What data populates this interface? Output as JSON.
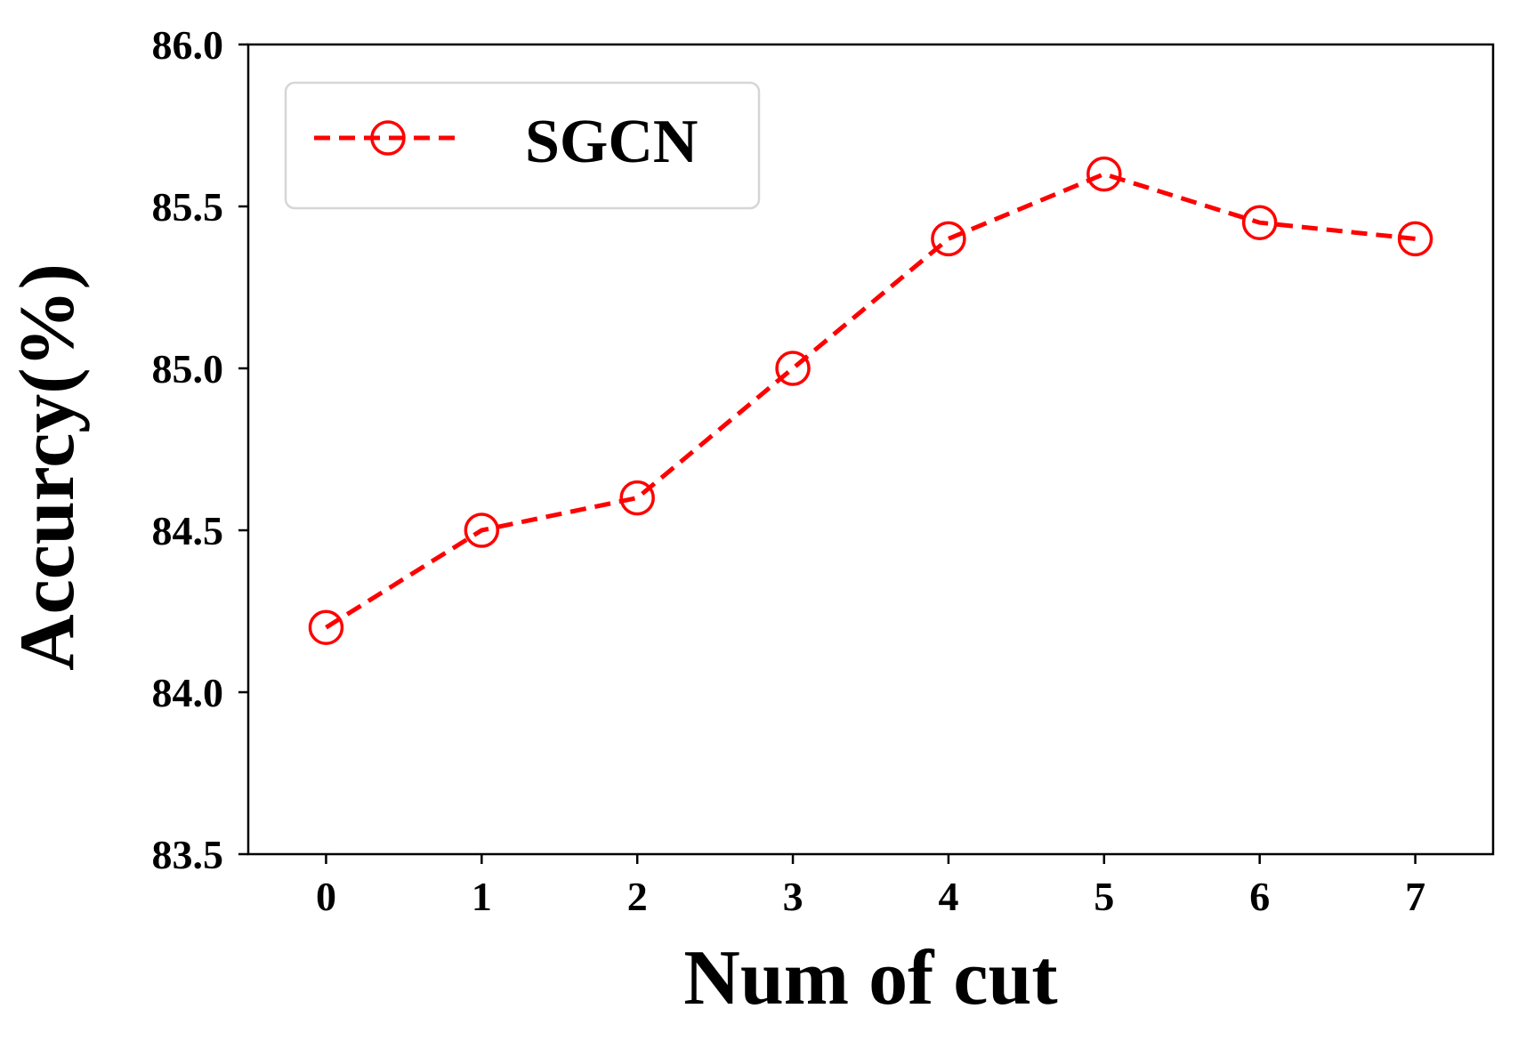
{
  "chart_data": {
    "type": "line",
    "title": "",
    "xlabel": "Num of cut",
    "ylabel": "Accurcy(%)",
    "x": [
      0,
      1,
      2,
      3,
      4,
      5,
      6,
      7
    ],
    "x_tick_labels": [
      "0",
      "1",
      "2",
      "3",
      "4",
      "5",
      "6",
      "7"
    ],
    "xlim": [
      -0.5,
      7.5
    ],
    "ylim": [
      83.5,
      86.0
    ],
    "y_ticks": [
      83.5,
      84.0,
      84.5,
      85.0,
      85.5,
      86.0
    ],
    "y_tick_labels": [
      "83.5",
      "84.0",
      "84.5",
      "85.0",
      "85.5",
      "86.0"
    ],
    "grid": false,
    "legend_position": "top-left",
    "series": [
      {
        "name": "SGCN",
        "values": [
          84.2,
          84.5,
          84.6,
          85.0,
          85.4,
          85.6,
          85.45,
          85.4
        ],
        "color": "#ff0000",
        "line_style": "dashed",
        "marker": "open-circle"
      }
    ]
  }
}
